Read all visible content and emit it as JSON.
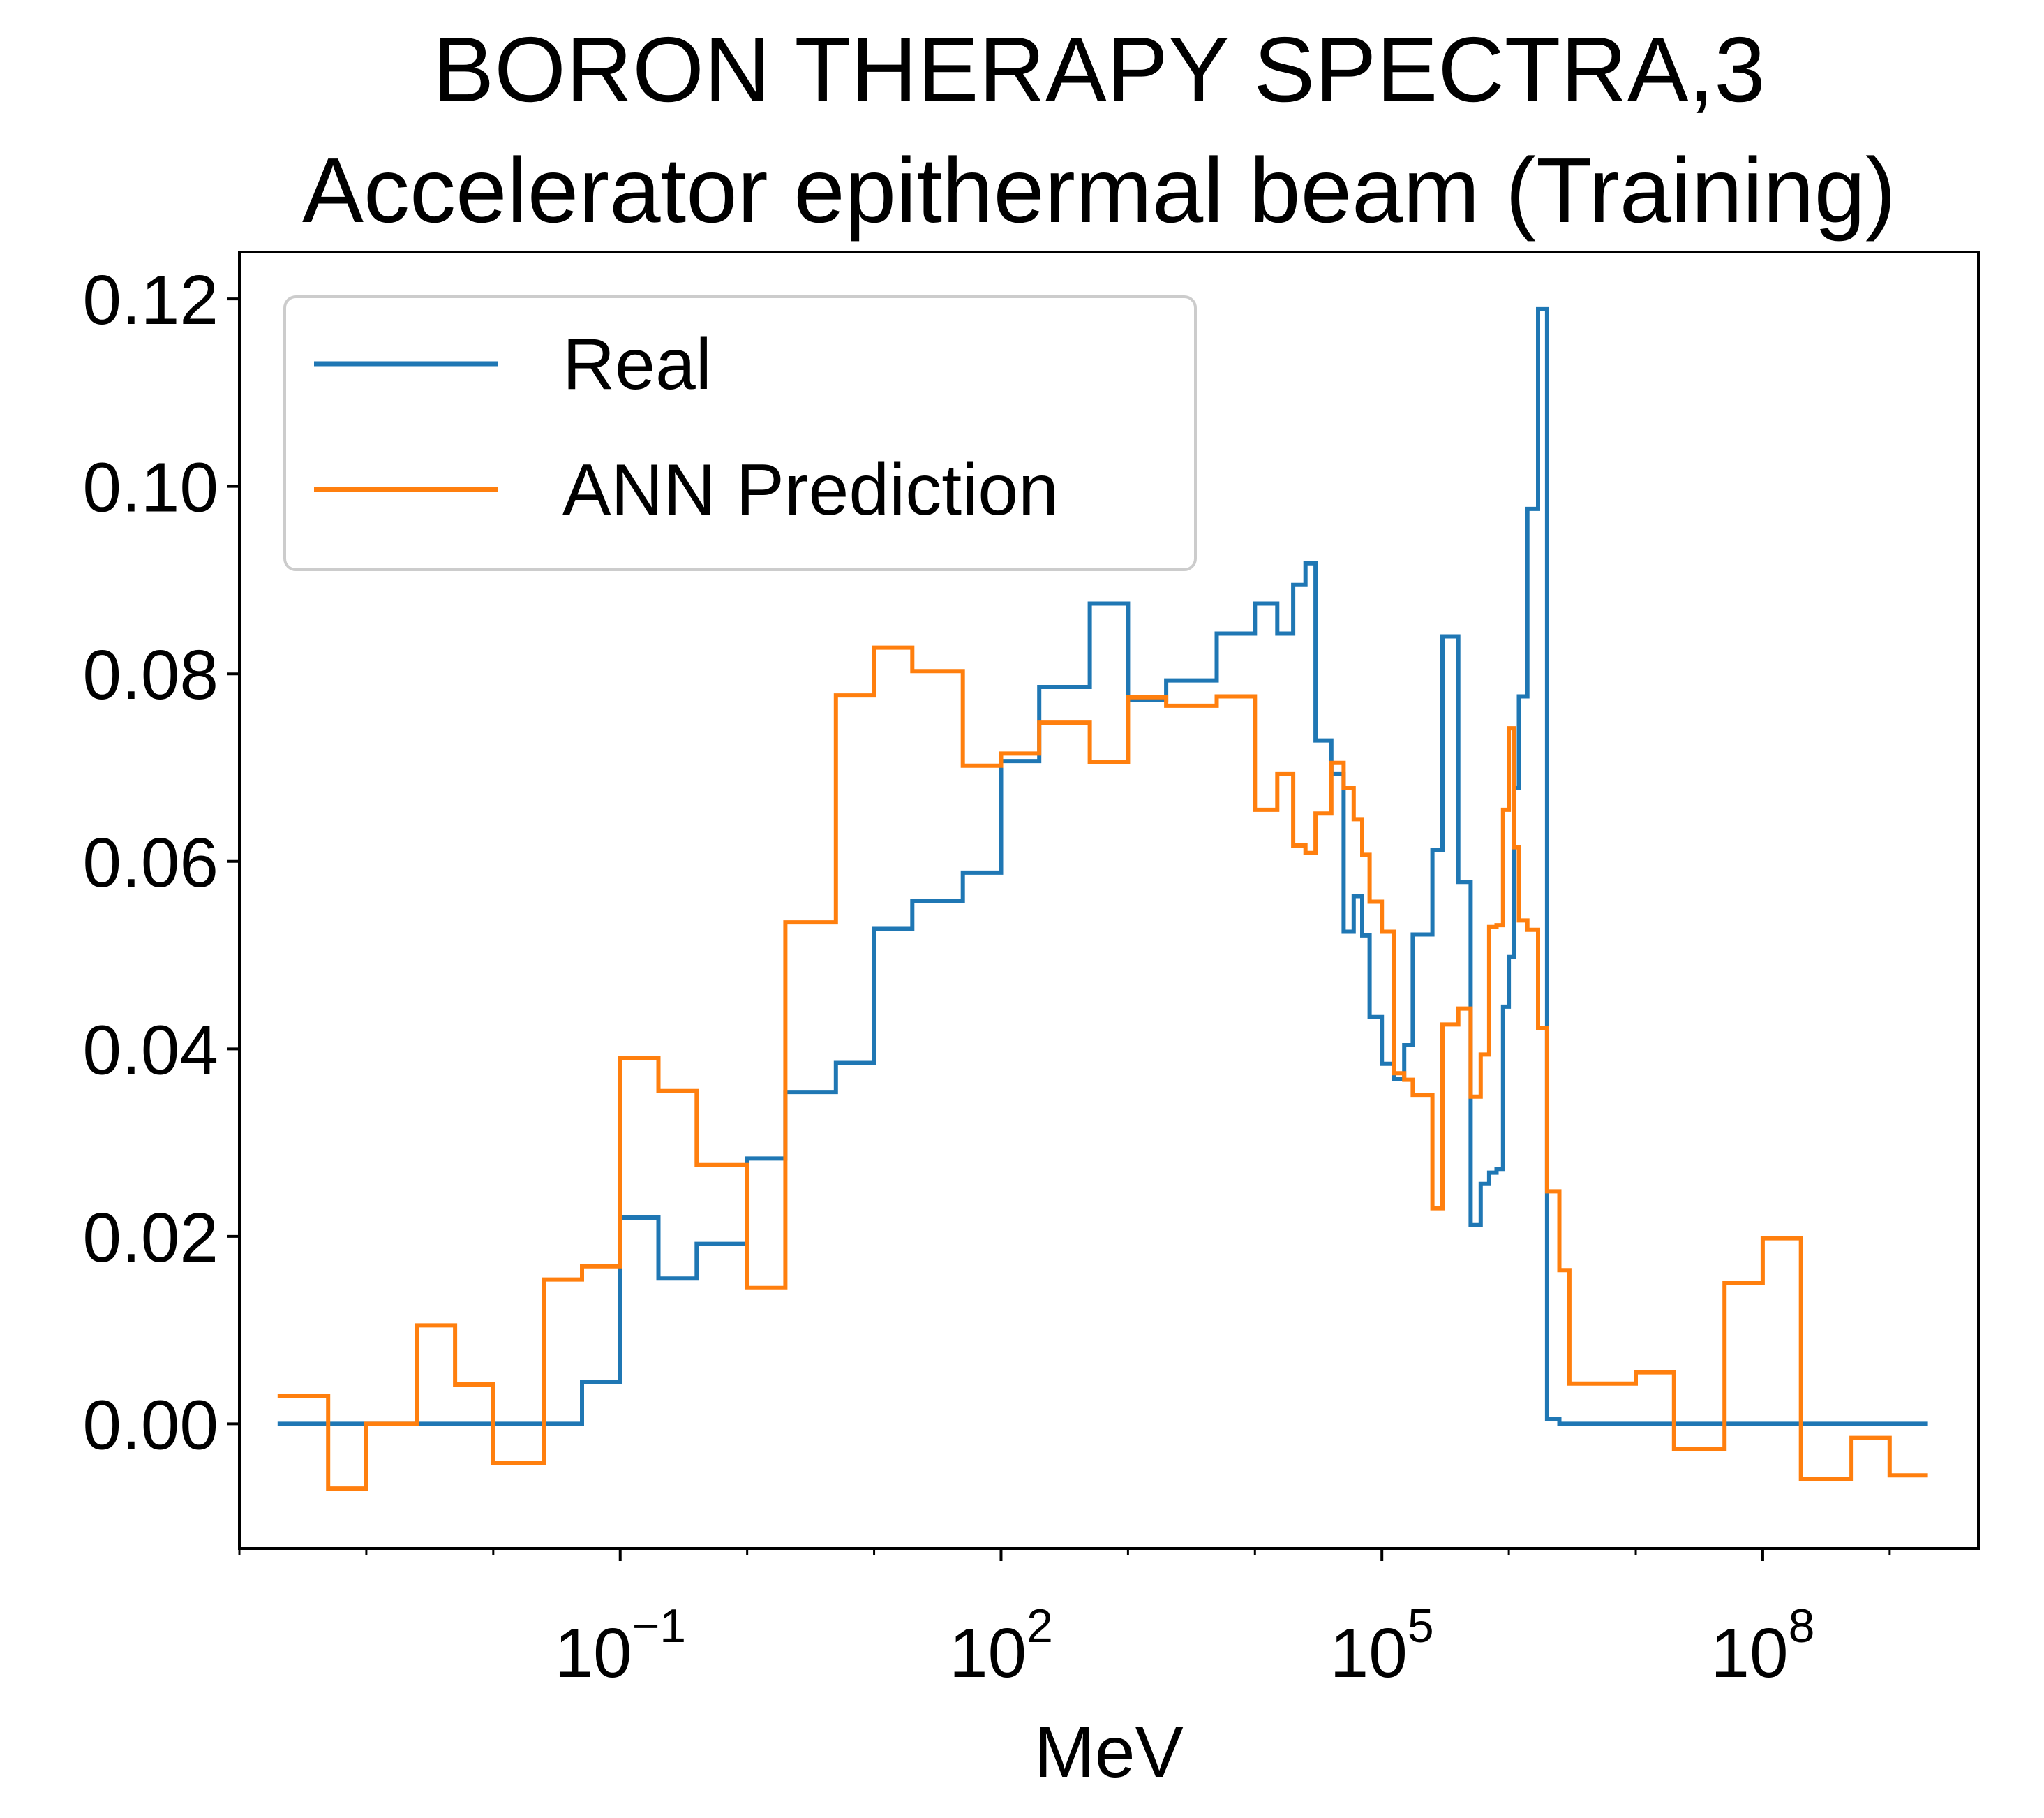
{
  "chart_data": {
    "type": "line",
    "step": "post",
    "title_lines": [
      "BORON THERAPY SPECTRA,3",
      "Accelerator epithermal beam (Training)"
    ],
    "xlabel": "MeV",
    "ylabel": "",
    "x_scale": "log",
    "xlim": [
      0.0001,
      5000000000.0
    ],
    "ylim": [
      -0.0133,
      0.125
    ],
    "x_ticks": [
      {
        "value": 0.1,
        "base": "10",
        "exp": "−1"
      },
      {
        "value": 100,
        "base": "10",
        "exp": "2"
      },
      {
        "value": 100000,
        "base": "10",
        "exp": "5"
      },
      {
        "value": 100000000,
        "base": "10",
        "exp": "8"
      }
    ],
    "y_ticks": [
      {
        "value": 0.0,
        "label": "0.00"
      },
      {
        "value": 0.02,
        "label": "0.02"
      },
      {
        "value": 0.04,
        "label": "0.04"
      },
      {
        "value": 0.06,
        "label": "0.06"
      },
      {
        "value": 0.08,
        "label": "0.08"
      },
      {
        "value": 0.1,
        "label": "0.10"
      },
      {
        "value": 0.12,
        "label": "0.12"
      }
    ],
    "grid": false,
    "legend": {
      "position": "upper-left"
    },
    "series": [
      {
        "name": "Real",
        "color": "#1f77b4",
        "x": [
          0.0002,
          0.0005,
          0.001,
          0.0025,
          0.005,
          0.01,
          0.025,
          0.05,
          0.1,
          0.2,
          0.4,
          1,
          2,
          5,
          10,
          20,
          50,
          100,
          200,
          500,
          1000,
          2000,
          5000,
          10000,
          15000,
          20000,
          25000,
          30000,
          40000,
          50000,
          60000,
          70000,
          80000,
          100000,
          125000,
          150000,
          175000,
          250000,
          300000,
          400000,
          500000,
          600000,
          700000,
          800000,
          900000,
          1000000,
          1100000,
          1200000,
          1400000,
          1700000,
          2000000,
          2500000,
          3000000,
          10000000,
          20000000,
          50000000,
          100000000,
          200000000,
          500000000,
          1000000000,
          2000000000
        ],
        "y": [
          0.0,
          0.0,
          0.0,
          0.0,
          0.0,
          0.0,
          0.0,
          0.0045,
          0.022,
          0.0155,
          0.0192,
          0.0283,
          0.0354,
          0.0385,
          0.0528,
          0.0558,
          0.0588,
          0.0707,
          0.0786,
          0.0875,
          0.0772,
          0.0793,
          0.0843,
          0.0875,
          0.0843,
          0.0895,
          0.0918,
          0.0729,
          0.0693,
          0.0525,
          0.0563,
          0.0521,
          0.0434,
          0.0384,
          0.0368,
          0.0404,
          0.0522,
          0.0612,
          0.084,
          0.0578,
          0.0212,
          0.0256,
          0.0268,
          0.0272,
          0.0445,
          0.0498,
          0.0678,
          0.0776,
          0.0976,
          0.1189,
          0.0005,
          0.0,
          0.0,
          0.0,
          0.0,
          0.0,
          0.0,
          0.0,
          0.0,
          0.0,
          0.0
        ]
      },
      {
        "name": "ANN Prediction",
        "color": "#ff7f0e",
        "x": [
          0.0002,
          0.0005,
          0.001,
          0.0025,
          0.005,
          0.01,
          0.025,
          0.05,
          0.1,
          0.2,
          0.4,
          1,
          2,
          5,
          10,
          20,
          50,
          100,
          200,
          500,
          1000,
          2000,
          5000,
          10000,
          15000,
          20000,
          25000,
          30000,
          40000,
          50000,
          60000,
          70000,
          80000,
          100000,
          125000,
          150000,
          175000,
          250000,
          300000,
          400000,
          500000,
          600000,
          700000,
          800000,
          900000,
          1000000,
          1100000,
          1200000,
          1400000,
          1700000,
          2000000,
          2500000,
          3000000,
          10000000,
          20000000,
          50000000,
          100000000,
          200000000,
          500000000,
          1000000000,
          2000000000
        ],
        "y": [
          0.003,
          -0.0069,
          0.0,
          0.0105,
          0.0042,
          -0.0042,
          0.0154,
          0.0168,
          0.039,
          0.0355,
          0.0276,
          0.0145,
          0.0535,
          0.0777,
          0.0828,
          0.0803,
          0.0702,
          0.0715,
          0.0748,
          0.0706,
          0.0775,
          0.0766,
          0.0776,
          0.0655,
          0.0693,
          0.0617,
          0.0609,
          0.0651,
          0.0705,
          0.0678,
          0.0645,
          0.0607,
          0.0557,
          0.0525,
          0.0374,
          0.0367,
          0.0351,
          0.023,
          0.0426,
          0.0443,
          0.0349,
          0.0394,
          0.053,
          0.0532,
          0.0655,
          0.0742,
          0.0615,
          0.0537,
          0.0527,
          0.0422,
          0.0248,
          0.0164,
          0.0043,
          0.0055,
          -0.0027,
          0.015,
          0.0198,
          -0.0059,
          -0.0015,
          -0.0055,
          -0.0055
        ]
      }
    ]
  }
}
